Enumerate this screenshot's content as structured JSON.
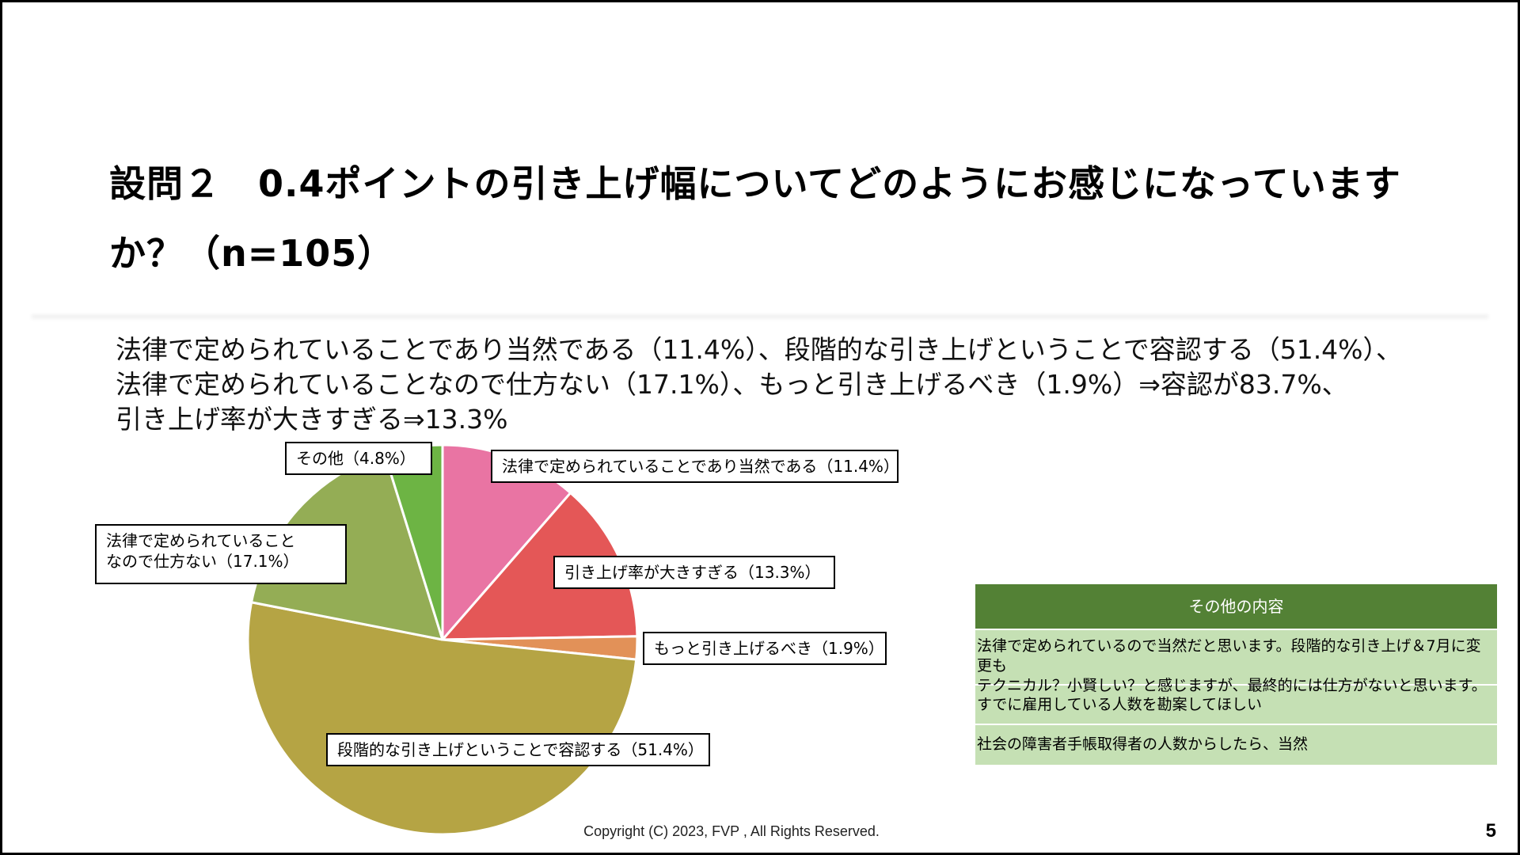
{
  "slide": {
    "title_line1": "設問２　0.4ポイントの引き上げ幅についてどのようにお感じになっています",
    "title_line2": "か？（n=105）",
    "summary": [
      "法律で定められていることであり当然である（11.4%）、段階的な引き上げということで容認する（51.4%）、",
      "法律で定められていることなので仕方ない（17.1%）、もっと引き上げるべき（1.9%）⇒容認が83.7%、",
      "引き上げ率が大きすぎる⇒13.3%"
    ],
    "footer": "Copyright (C) 2023, FVP , All Rights Reserved.",
    "page_number": "5"
  },
  "chart_data": {
    "type": "pie",
    "title": "",
    "start": "12 o'clock",
    "direction": "clockwise",
    "slices": [
      {
        "label": "法律で定められていることであり当然である（11.4%）",
        "value": 11.4,
        "color": "#e974a3"
      },
      {
        "label": "引き上げ率が大きすぎる（13.3%）",
        "value": 13.3,
        "color": "#e45757"
      },
      {
        "label": "もっと引き上げるべき（1.9%）",
        "value": 1.9,
        "color": "#e29158"
      },
      {
        "label": "段階的な引き上げということで容認する（51.4%）",
        "value": 51.4,
        "color": "#b5a444"
      },
      {
        "label_lines": [
          "法律で定められていること",
          "なので仕方ない（17.1%）"
        ],
        "value": 17.1,
        "color": "#94ad55"
      },
      {
        "label": "その他（4.8%）",
        "value": 4.8,
        "color": "#6db444"
      }
    ]
  },
  "other_table": {
    "header": "その他の内容",
    "rows": [
      {
        "lines": [
          "法律で定められているので当然だと思います。段階的な引き上げ＆7月に変更も",
          "テクニカル？小賢しい？と感じますが、最終的には仕方がないと思います。"
        ]
      },
      {
        "lines": [
          "すでに雇用している人数を勘案してほしい"
        ]
      },
      {
        "lines": [
          "社会の障害者手帳取得者の人数からしたら、当然"
        ]
      }
    ]
  }
}
